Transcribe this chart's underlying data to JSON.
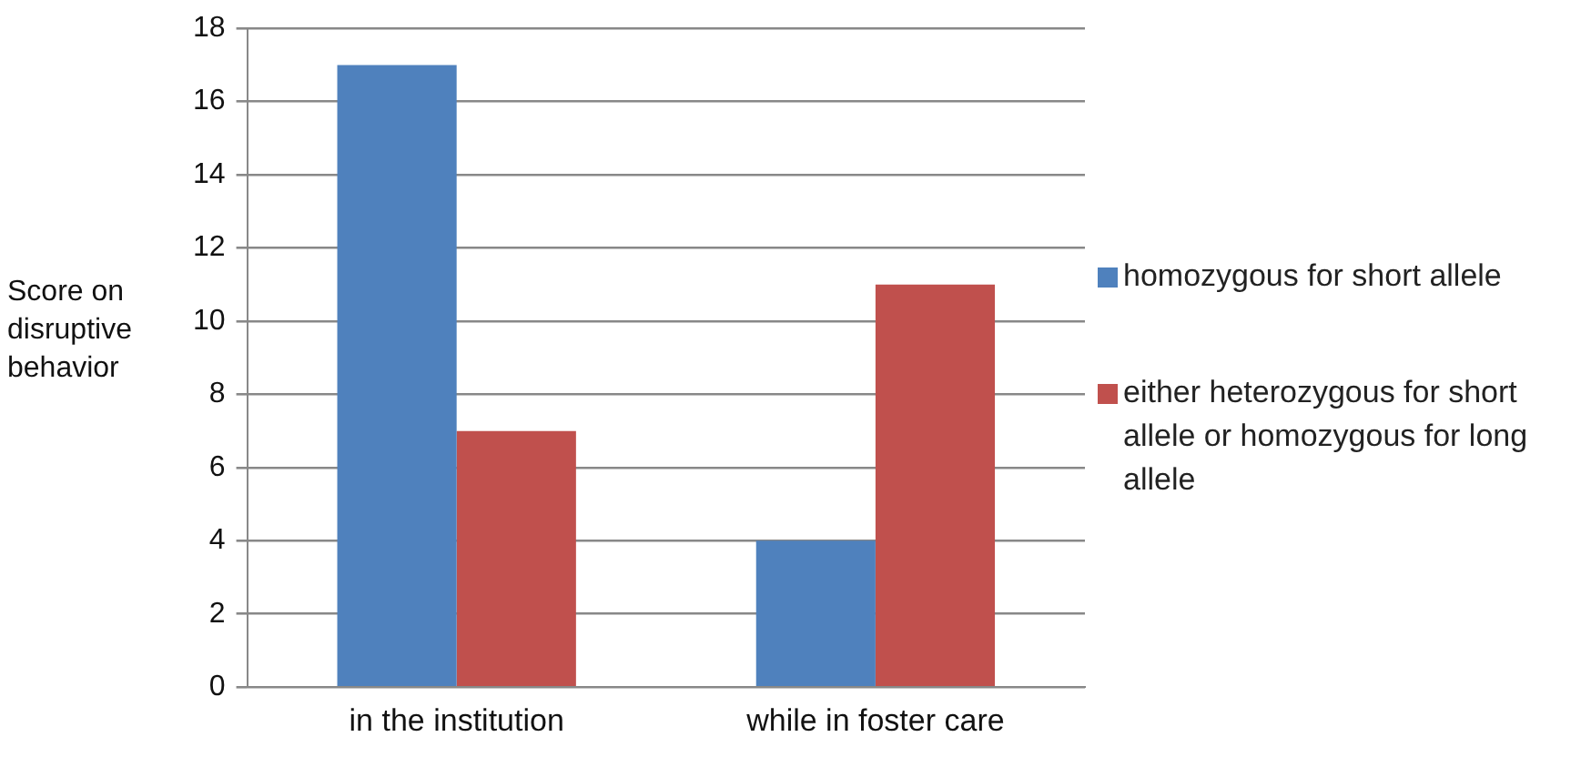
{
  "chart_data": {
    "type": "bar",
    "ylabel": "Score on disruptive behavior",
    "categories": [
      "in the institution",
      "while in foster care"
    ],
    "series": [
      {
        "name": "homozygous for short allele",
        "color": "#4f81bd",
        "values": [
          17,
          4
        ]
      },
      {
        "name": "either heterozygous for short allele or homozygous for long allele",
        "color": "#c0504d",
        "values": [
          7,
          11
        ]
      }
    ],
    "ylim": [
      0,
      18
    ],
    "yticks": [
      0,
      2,
      4,
      6,
      8,
      10,
      12,
      14,
      16,
      18
    ],
    "grid": "y",
    "legend": "right"
  }
}
